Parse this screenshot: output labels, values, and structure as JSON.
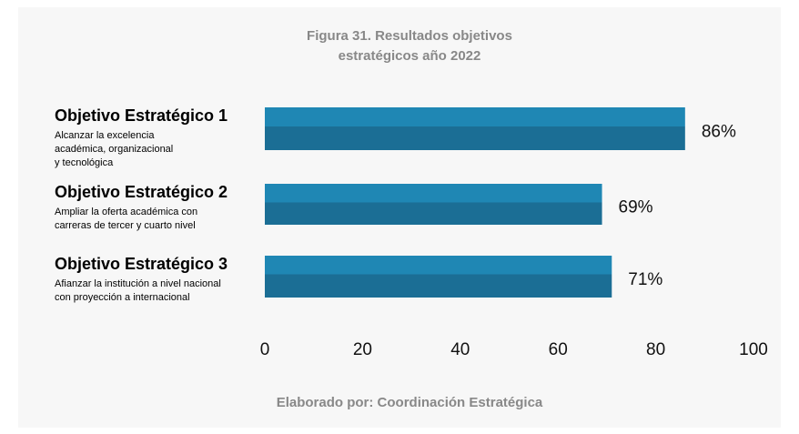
{
  "chart_data": {
    "type": "barh",
    "title": [
      "Figura 31. Resultados objetivos",
      "estratégicos año 2022"
    ],
    "categories": [
      "Objetivo Estratégico 1",
      "Objetivo Estratégico 2",
      "Objetivo Estratégico 3"
    ],
    "descriptions": [
      [
        "Alcanzar la excelencia",
        "académica, organizacional",
        "y tecnológica"
      ],
      [
        "Ampliar la oferta académica con",
        "carreras de tercer y cuarto nivel"
      ],
      [
        "Afianzar la institución a nivel nacional",
        "con proyección a internacional"
      ]
    ],
    "values": [
      86,
      69,
      71
    ],
    "value_labels": [
      "86%",
      "69%",
      "71%"
    ],
    "colors": [
      "#1f87b4",
      "#1b6e95"
    ],
    "xlim": [
      0,
      100
    ],
    "xticks": [
      0,
      20,
      40,
      60,
      80,
      100
    ],
    "grid": false,
    "footer": "Elaborado por:  Coordinación Estratégica"
  }
}
